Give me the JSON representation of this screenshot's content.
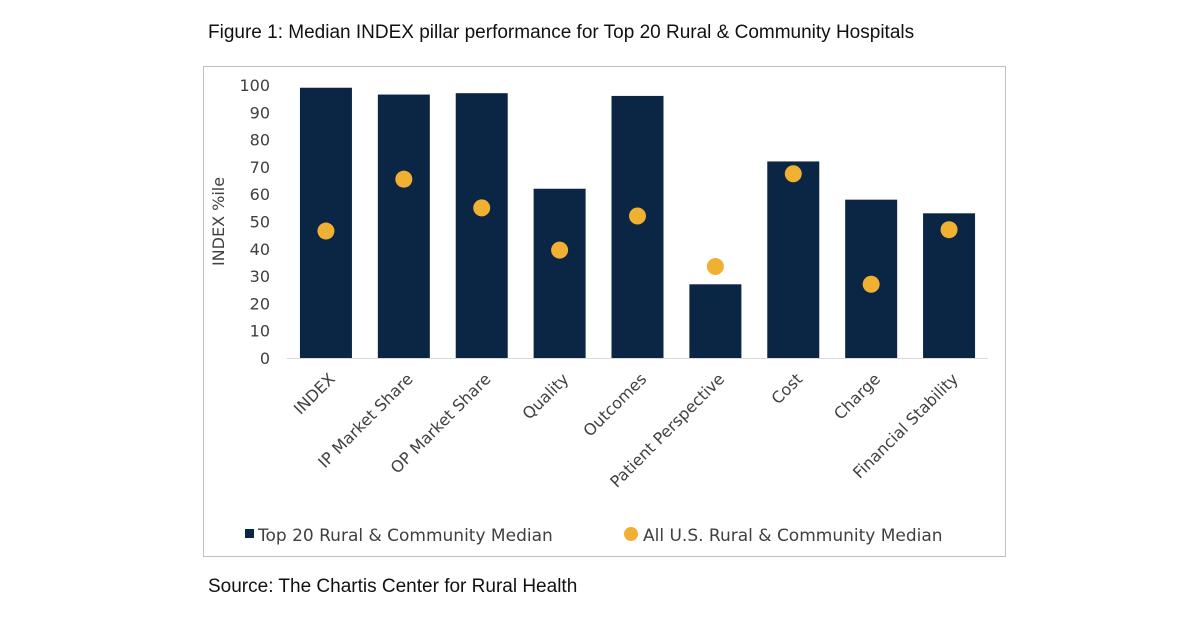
{
  "figure_title": "Figure 1: Median INDEX pillar performance for Top 20 Rural & Community Hospitals",
  "source_text": "Source: The Chartis Center for Rural Health",
  "colors": {
    "bar": "#0b2545",
    "dot": "#f0b031",
    "axis": "#d9d9d9",
    "text": "#404040"
  },
  "chart_data": {
    "type": "bar",
    "ylabel": "INDEX %ile",
    "ylim": [
      0,
      100
    ],
    "yticks": [
      0,
      10,
      20,
      30,
      40,
      50,
      60,
      70,
      80,
      90,
      100
    ],
    "grid": false,
    "legend_position": "bottom",
    "categories": [
      "INDEX",
      "IP Market Share",
      "OP Market Share",
      "Quality",
      "Outcomes",
      "Patient Perspective",
      "Cost",
      "Charge",
      "Financial Stability"
    ],
    "series": [
      {
        "name": "Top 20 Rural & Community Median",
        "type": "bar",
        "values": [
          99,
          96.5,
          97,
          62,
          96,
          27,
          72,
          58,
          53
        ]
      },
      {
        "name": "All U.S. Rural & Community Median",
        "type": "scatter",
        "values": [
          46.5,
          65.5,
          55,
          39.5,
          52,
          33.5,
          67.5,
          27,
          47
        ]
      }
    ]
  }
}
